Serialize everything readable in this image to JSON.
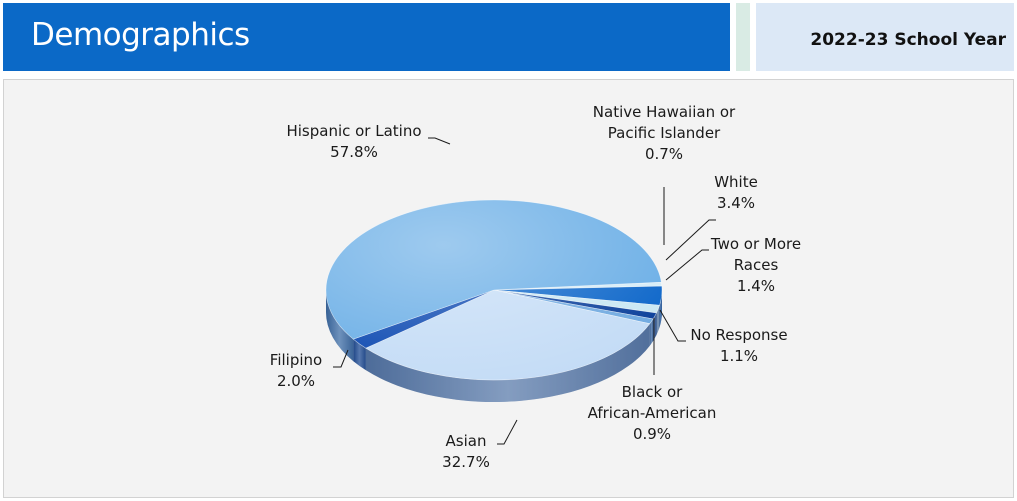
{
  "header": {
    "title": "Demographics",
    "school_year": "2022-23 School Year"
  },
  "chart_data": {
    "type": "pie",
    "title": "",
    "slices": [
      {
        "label_lines": [
          "Native Hawaiian or",
          "Pacific Islander"
        ],
        "label": "Native Hawaiian or Pacific Islander",
        "value": 0.7,
        "value_text": "0.7%",
        "color": "#d6ecf7"
      },
      {
        "label_lines": [
          "White"
        ],
        "label": "White",
        "value": 3.4,
        "value_text": "3.4%",
        "color": "#0b65c9"
      },
      {
        "label_lines": [
          "Two or More",
          "Races"
        ],
        "label": "Two or More Races",
        "value": 1.4,
        "value_text": "1.4%",
        "color": "#c9e7f3"
      },
      {
        "label_lines": [
          "No Response"
        ],
        "label": "No Response",
        "value": 1.1,
        "value_text": "1.1%",
        "color": "#0a3f9a"
      },
      {
        "label_lines": [
          "Black or",
          "African-American"
        ],
        "label": "Black or African-American",
        "value": 0.9,
        "value_text": "0.9%",
        "color": "#6fa9e0"
      },
      {
        "label_lines": [
          "Asian"
        ],
        "label": "Asian",
        "value": 32.7,
        "value_text": "32.7%",
        "color": "#c4dcf6"
      },
      {
        "label_lines": [
          "Filipino"
        ],
        "label": "Filipino",
        "value": 2.0,
        "value_text": "2.0%",
        "color": "#0a47b0"
      },
      {
        "label_lines": [
          "Hispanic or Latino"
        ],
        "label": "Hispanic or Latino",
        "value": 57.8,
        "value_text": "57.8%",
        "color": "#6aaee6"
      }
    ]
  }
}
